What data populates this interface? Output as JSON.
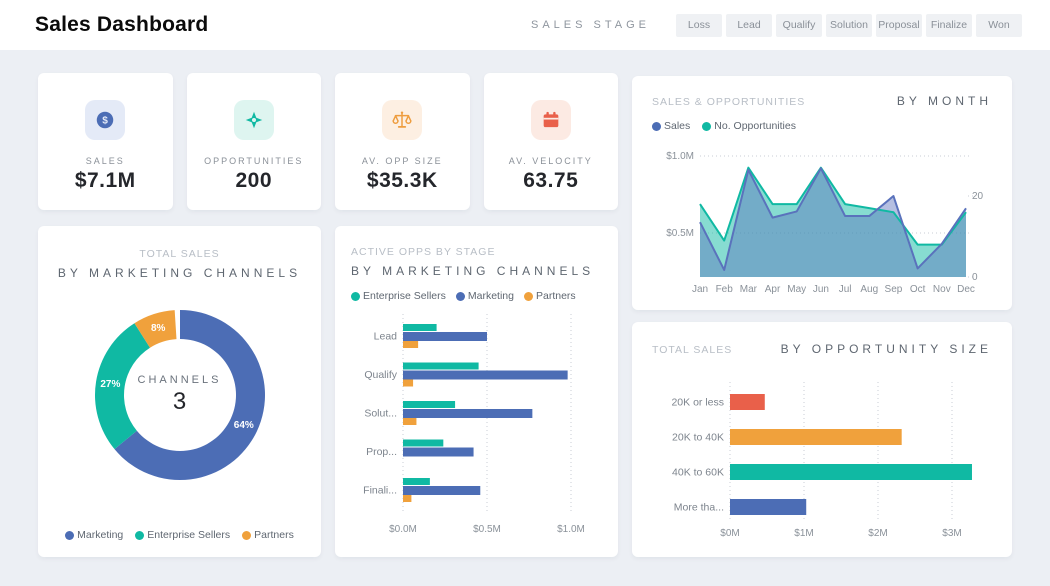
{
  "colors": {
    "blue": "#4C6DB5",
    "teal": "#10B9A3",
    "orange": "#F0A13C",
    "tomato": "#E9604A",
    "blue_line": "#5A72BC",
    "teal_line": "#10B9A3",
    "blue_fill": "rgba(90,114,188,0.45)",
    "teal_fill": "rgba(16,185,163,0.5)",
    "kpi_tiles": {
      "blue": "#E4EAF7",
      "teal": "#DEF5F0",
      "orange": "#FDEFE2",
      "tomato": "#FCEAE3"
    },
    "page_bg": "#ECEFF4",
    "card_bg": "#FFFFFF",
    "grid_dot": "#C9CDD4",
    "axis_text": "#8A9199"
  },
  "header": {
    "title": "Sales Dashboard",
    "stage_label": "SALES STAGE",
    "stages": [
      "Loss",
      "Lead",
      "Qualify",
      "Solution",
      "Proposal",
      "Finalize",
      "Won"
    ]
  },
  "kpis": [
    {
      "label": "SALES",
      "value": "$7.1M",
      "icon": "dollar-coin-icon",
      "accent": "blue"
    },
    {
      "label": "OPPORTUNITIES",
      "value": "200",
      "icon": "target-diamond-icon",
      "accent": "teal"
    },
    {
      "label": "AV. OPP SIZE",
      "value": "$35.3K",
      "icon": "scales-icon",
      "accent": "orange"
    },
    {
      "label": "AV. VELOCITY",
      "value": "63.75",
      "icon": "calendar-icon",
      "accent": "tomato"
    }
  ],
  "chart_data": [
    {
      "id": "total-sales-by-marketing-channels",
      "type": "pie",
      "title": "TOTAL SALES",
      "subtitle": "BY MARKETING CHANNELS",
      "center_label": "CHANNELS",
      "center_value": "3",
      "slices": [
        {
          "label": "Marketing",
          "pct": 64,
          "color": "blue"
        },
        {
          "label": "Enterprise Sellers",
          "pct": 27,
          "color": "teal"
        },
        {
          "label": "Partners",
          "pct": 8,
          "color": "orange"
        }
      ],
      "legend_position": "bottom"
    },
    {
      "id": "active-opps-by-stage",
      "type": "bar",
      "title": "ACTIVE OPPS BY STAGE",
      "subtitle": "BY MARKETING CHANNELS",
      "categories": [
        "Lead",
        "Qualify",
        "Solut...",
        "Prop...",
        "Finali..."
      ],
      "series": [
        {
          "name": "Enterprise Sellers",
          "color": "teal",
          "values": [
            0.2,
            0.45,
            0.31,
            0.24,
            0.16
          ]
        },
        {
          "name": "Marketing",
          "color": "blue",
          "values": [
            0.5,
            0.98,
            0.77,
            0.42,
            0.46
          ]
        },
        {
          "name": "Partners",
          "color": "orange",
          "values": [
            0.09,
            0.06,
            0.08,
            0,
            0.05
          ]
        }
      ],
      "value_unit": "$M",
      "xticks": [
        {
          "label": "$0.0M",
          "v": 0
        },
        {
          "label": "$0.5M",
          "v": 0.5
        },
        {
          "label": "$1.0M",
          "v": 1
        }
      ],
      "xlim": [
        0,
        1.15
      ],
      "grid": "dotted-vertical",
      "legend_position": "top"
    },
    {
      "id": "sales-and-opportunities-by-month",
      "type": "area",
      "title": "SALES & OPPORTUNITIES",
      "subtitle": "BY MONTH",
      "x": [
        "Jan",
        "Feb",
        "Mar",
        "Apr",
        "May",
        "Jun",
        "Jul",
        "Aug",
        "Sep",
        "Oct",
        "Nov",
        "Dec"
      ],
      "series": [
        {
          "name": "Sales",
          "axis": "left",
          "color": "blue",
          "values": [
            0.57,
            0.26,
            0.91,
            0.6,
            0.64,
            0.92,
            0.61,
            0.61,
            0.74,
            0.27,
            0.43,
            0.66
          ]
        },
        {
          "name": "No. Opportunities",
          "axis": "right",
          "color": "teal",
          "values": [
            18,
            9,
            27,
            18,
            18,
            27,
            18,
            17,
            16,
            8,
            8,
            16
          ]
        }
      ],
      "left_ticks": [
        {
          "label": "$1.0M",
          "v": 1.0
        },
        {
          "label": "$0.5M",
          "v": 0.5
        }
      ],
      "right_ticks": [
        {
          "label": "20",
          "v": 20
        },
        {
          "label": "0",
          "v": 0
        }
      ],
      "grid": "dotted-horizontal",
      "legend_position": "top"
    },
    {
      "id": "total-sales-by-opportunity-size",
      "type": "bar",
      "title": "TOTAL SALES",
      "subtitle": "BY OPPORTUNITY SIZE",
      "categories": [
        "20K or less",
        "20K to 40K",
        "40K to 60K",
        "More tha..."
      ],
      "values": [
        0.47,
        2.32,
        3.27,
        1.03
      ],
      "value_unit": "$M",
      "bar_colors": [
        "tomato",
        "orange",
        "teal",
        "blue"
      ],
      "xticks": [
        {
          "label": "$0M",
          "v": 0
        },
        {
          "label": "$1M",
          "v": 1
        },
        {
          "label": "$2M",
          "v": 2
        },
        {
          "label": "$3M",
          "v": 3
        }
      ],
      "xlim": [
        0,
        3.6
      ],
      "grid": "dotted-vertical"
    }
  ]
}
